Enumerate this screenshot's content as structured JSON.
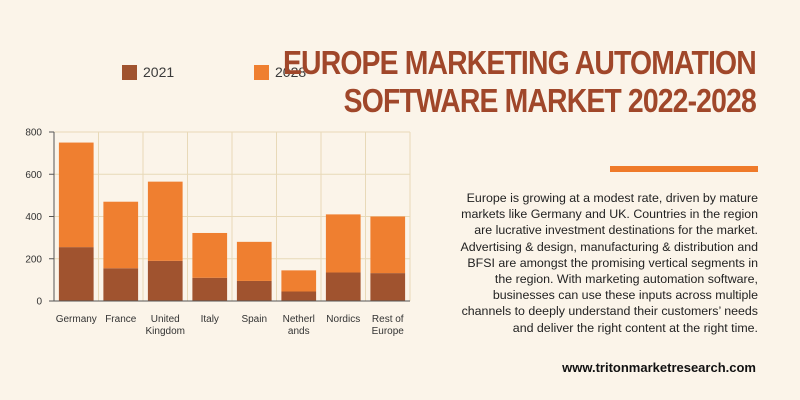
{
  "header": {
    "title_line1": "EUROPE MARKETING AUTOMATION",
    "title_line2": "SOFTWARE MARKET 2022-2028"
  },
  "description": "Europe is growing at a modest rate, driven by mature markets like Germany and UK. Countries in the region are lucrative investment destinations for the market. Advertising & design, manufacturing & distribution and BFSI are amongst the promising vertical segments in the region. With marketing automation software, businesses can use these inputs across multiple channels to deeply understand their customers’ needs and deliver the right content at the right time.",
  "website": "www.tritonmarketresearch.com",
  "colors": {
    "series_2021": "#a0532f",
    "series_2028": "#ef7f30",
    "title": "#a0472a",
    "accent": "#ef7a2a",
    "background": "#fbf4e9",
    "grid": "#e8d9b8"
  },
  "chart_data": {
    "type": "bar",
    "stacked": true,
    "categories": [
      [
        "Germany"
      ],
      [
        "France"
      ],
      [
        "United",
        "Kingdom"
      ],
      [
        "Italy"
      ],
      [
        "Spain"
      ],
      [
        "Netherl",
        "ands"
      ],
      [
        "Nordics"
      ],
      [
        "Rest of",
        "Europe"
      ]
    ],
    "series": [
      {
        "name": "2021",
        "values": [
          255,
          155,
          190,
          110,
          95,
          45,
          135,
          132
        ]
      },
      {
        "name": "2028",
        "values": [
          495,
          315,
          375,
          212,
          185,
          100,
          275,
          268
        ]
      }
    ],
    "ylim": [
      0,
      800
    ],
    "yticks": [
      0,
      200,
      400,
      600,
      800
    ],
    "grid": true,
    "legend": "top-left"
  }
}
